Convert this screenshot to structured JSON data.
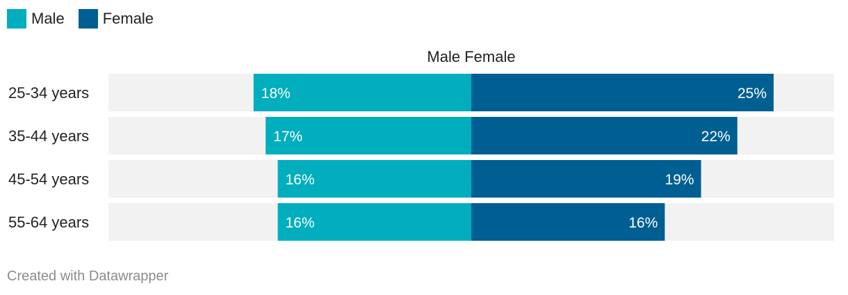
{
  "legend": [
    {
      "label": "Male",
      "color": "#00aebd"
    },
    {
      "label": "Female",
      "color": "#005f92"
    }
  ],
  "header": "Male Female",
  "footer": "Created with Datawrapper",
  "chart_data": {
    "type": "bar",
    "orientation": "horizontal-diverging",
    "categories": [
      "25-34 years",
      "35-44 years",
      "45-54 years",
      "55-64 years"
    ],
    "series": [
      {
        "name": "Male",
        "values": [
          18,
          17,
          16,
          16
        ],
        "labels": [
          "18%",
          "17%",
          "16%",
          "16%"
        ],
        "color": "#00aebd"
      },
      {
        "name": "Female",
        "values": [
          25,
          22,
          19,
          16
        ],
        "labels": [
          "25%",
          "22%",
          "19%",
          "16%"
        ],
        "color": "#005f92"
      }
    ],
    "xlim_male": [
      30,
      0
    ],
    "xlim_female": [
      0,
      30
    ],
    "unit": "%",
    "background_track_color": "#f2f2f2",
    "legend_position": "top-left",
    "grid": false
  }
}
